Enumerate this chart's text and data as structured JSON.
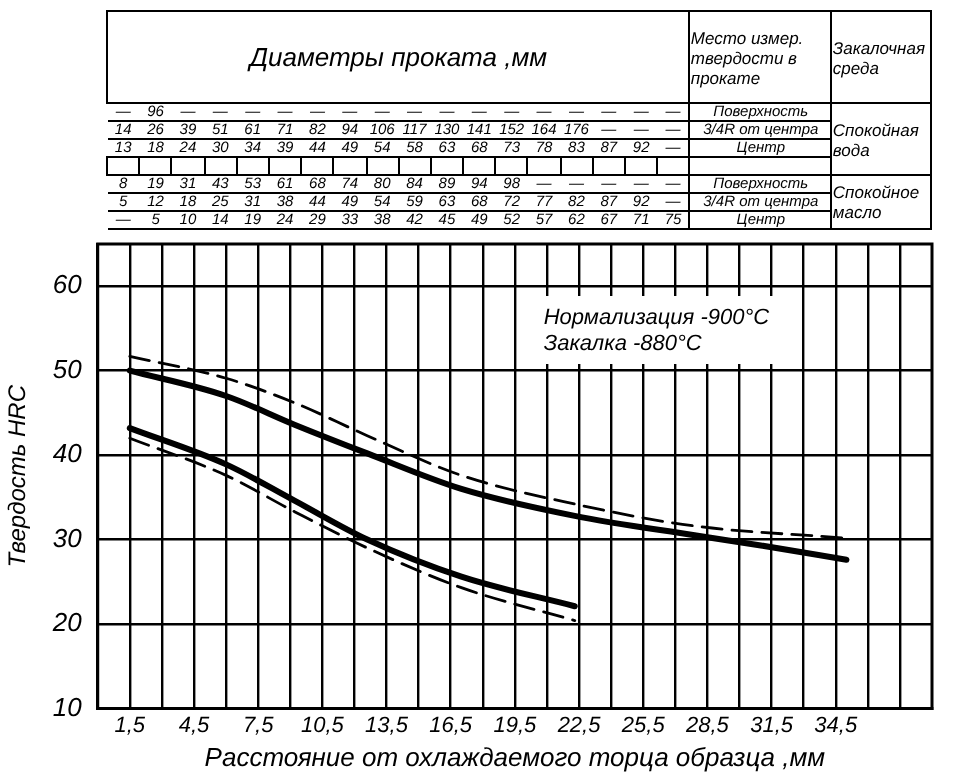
{
  "chart_data": {
    "type": "line",
    "xlabel": "Расстояние от охлаждаемого торца образца ,мм",
    "ylabel": "Твердость HRC",
    "xlim": [
      0,
      39
    ],
    "ylim": [
      10,
      65
    ],
    "xticks": [
      {
        "value": 1.5,
        "label": "1,5"
      },
      {
        "value": 3,
        "label": null
      },
      {
        "value": 4.5,
        "label": "4,5"
      },
      {
        "value": 6,
        "label": null
      },
      {
        "value": 7.5,
        "label": "7,5"
      },
      {
        "value": 9,
        "label": null
      },
      {
        "value": 10.5,
        "label": "10,5"
      },
      {
        "value": 12,
        "label": null
      },
      {
        "value": 13.5,
        "label": "13,5"
      },
      {
        "value": 15,
        "label": null
      },
      {
        "value": 16.5,
        "label": "16,5"
      },
      {
        "value": 18,
        "label": null
      },
      {
        "value": 19.5,
        "label": "19,5"
      },
      {
        "value": 21,
        "label": null
      },
      {
        "value": 22.5,
        "label": "22,5"
      },
      {
        "value": 24,
        "label": null
      },
      {
        "value": 25.5,
        "label": "25,5"
      },
      {
        "value": 27,
        "label": null
      },
      {
        "value": 28.5,
        "label": "28,5"
      },
      {
        "value": 30,
        "label": null
      },
      {
        "value": 31.5,
        "label": "31,5"
      },
      {
        "value": 33,
        "label": null
      },
      {
        "value": 34.5,
        "label": "34,5"
      },
      {
        "value": 36,
        "label": null
      },
      {
        "value": 37.5,
        "label": null
      }
    ],
    "yticks": [
      10,
      20,
      30,
      40,
      50,
      60
    ],
    "grid": true,
    "legend": false,
    "marker": "none",
    "series": [
      {
        "color": "#000000",
        "line_style": "solid",
        "x": [
          1.5,
          6,
          9.2,
          12.6,
          17,
          22.3,
          27.9,
          31,
          35
        ],
        "values": [
          50,
          47,
          43.6,
          40.2,
          36,
          32.8,
          30.5,
          29.3,
          27.6
        ]
      },
      {
        "color": "#000000",
        "line_style": "dashed",
        "x": [
          1.5,
          6,
          9.2,
          12.6,
          17,
          22.3,
          27.9,
          34.8
        ],
        "values": [
          51.7,
          49.1,
          46.2,
          42.3,
          37.6,
          34.2,
          31.6,
          30.2
        ]
      },
      {
        "color": "#000000",
        "line_style": "solid",
        "x": [
          1.5,
          6,
          9.2,
          12.6,
          17,
          22.3
        ],
        "values": [
          43.2,
          38.9,
          34.6,
          30,
          25.6,
          22.1
        ]
      },
      {
        "color": "#000000",
        "line_style": "dashed",
        "x": [
          1.5,
          6,
          9.2,
          12.6,
          17,
          22.3
        ],
        "values": [
          42,
          37.6,
          33.3,
          29,
          24.3,
          20.4
        ]
      }
    ],
    "annotations": [
      "Диаметры проката ,мм",
      "Место измер. твердости в прокате",
      "Закалочная среда",
      "— 96 — — — — — — — — — — — — — — — —",
      "14 26 39 51 61 71 82 94 106 117 130 141 152 164 176 — — —",
      "13 18 24 30 34 39 44 49 54 58 63 68 73 78 83 87 92 —",
      "Поверхность",
      "3/4R от центра",
      "Центр",
      "Спокойная вода",
      "8 19 31 43 53 61 68 74 80 84 89 94 98 — — — — —",
      "5 12 18 25 31 38 44 49 54 59 63 68 72 77 82 87 92 —",
      "— 5 10 14 19 24 29 33 38 42 45 49 52 57 62 67 71 75",
      "Поверхность",
      "3/4R от центра",
      "Центр",
      "Спокойное масло",
      "Нормализация -900°С",
      "Закалка -880°С"
    ]
  }
}
